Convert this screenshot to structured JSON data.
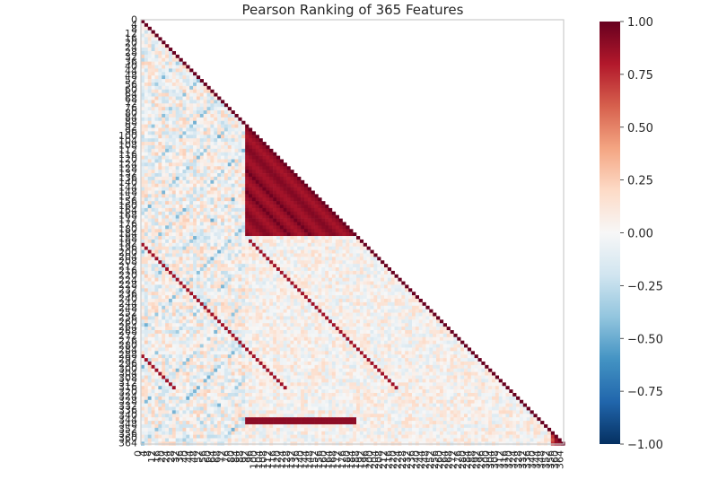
{
  "chart_data": {
    "type": "heatmap",
    "title": "Pearson Ranking of 365 Features",
    "n_features": 365,
    "matrix_shape": "lower-triangular",
    "colormap": "RdBu_r",
    "vlim": [
      -1.0,
      1.0
    ],
    "colorbar": {
      "ticks": [
        1.0,
        0.75,
        0.5,
        0.25,
        0.0,
        -0.25,
        -0.5,
        -0.75,
        -1.0
      ],
      "tick_labels": [
        "1.00",
        "0.75",
        "0.50",
        "0.25",
        "0.00",
        "−0.25",
        "−0.50",
        "−0.75",
        "−1.00"
      ],
      "colors": [
        "#67001f",
        "#b2182b",
        "#d6604d",
        "#f4a582",
        "#fddbc7",
        "#f7f7f7",
        "#d1e5f0",
        "#92c5de",
        "#4393c3",
        "#2166ac",
        "#053061"
      ]
    },
    "blocks": [
      {
        "feature_range": [
          90,
          184
        ],
        "pattern": "strong positive block, diagonal banding with period ~19",
        "value_range": [
          0.75,
          1.0
        ]
      },
      {
        "feature_range": [
          185,
          315
        ],
        "pattern": "weak positive/negative mixed correlations",
        "value_range": [
          -0.15,
          0.3
        ]
      },
      {
        "feature_range": [
          340,
          345
        ],
        "pattern": "strong positive stripe with features 90-184",
        "value_range": [
          0.85,
          1.0
        ]
      },
      {
        "feature_range": [
          344,
          364
        ],
        "pattern": "near-zero correlations with small red cluster near the end",
        "value_range": [
          -0.1,
          0.9
        ]
      }
    ],
    "grid": false
  }
}
